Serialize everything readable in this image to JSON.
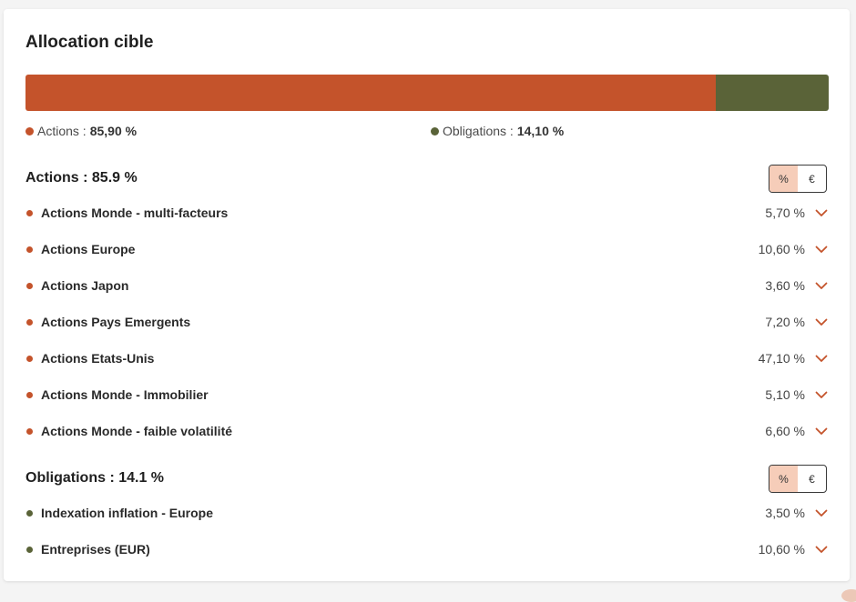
{
  "title": "Allocation cible",
  "colors": {
    "actions": "#c4532b",
    "obligations": "#5a6338",
    "toggle_active": "#f6cdb9"
  },
  "allocation_bar": [
    {
      "name": "Actions",
      "percent": 85.9
    },
    {
      "name": "Obligations",
      "percent": 14.1
    }
  ],
  "legend": {
    "actions_label": "Actions :",
    "actions_value": "85,90 %",
    "obligations_label": "Obligations :",
    "obligations_value": "14,10 %"
  },
  "sections": {
    "actions": {
      "title": "Actions : 85.9 %",
      "toggle": {
        "percent": "%",
        "euro": "€"
      },
      "items": [
        {
          "label": "Actions Monde - multi-facteurs",
          "value": "5,70 %"
        },
        {
          "label": "Actions Europe",
          "value": "10,60 %"
        },
        {
          "label": "Actions Japon",
          "value": "3,60 %"
        },
        {
          "label": "Actions Pays Emergents",
          "value": "7,20 %"
        },
        {
          "label": "Actions Etats-Unis",
          "value": "47,10 %"
        },
        {
          "label": "Actions Monde - Immobilier",
          "value": "5,10 %"
        },
        {
          "label": "Actions Monde - faible volatilité",
          "value": "6,60 %"
        }
      ]
    },
    "obligations": {
      "title": "Obligations : 14.1 %",
      "toggle": {
        "percent": "%",
        "euro": "€"
      },
      "items": [
        {
          "label": "Indexation inflation - Europe",
          "value": "3,50 %"
        },
        {
          "label": "Entreprises (EUR)",
          "value": "10,60 %"
        }
      ]
    }
  },
  "icons": {
    "chevron": "chevron-down-icon",
    "dot": "bullet-dot-icon"
  }
}
